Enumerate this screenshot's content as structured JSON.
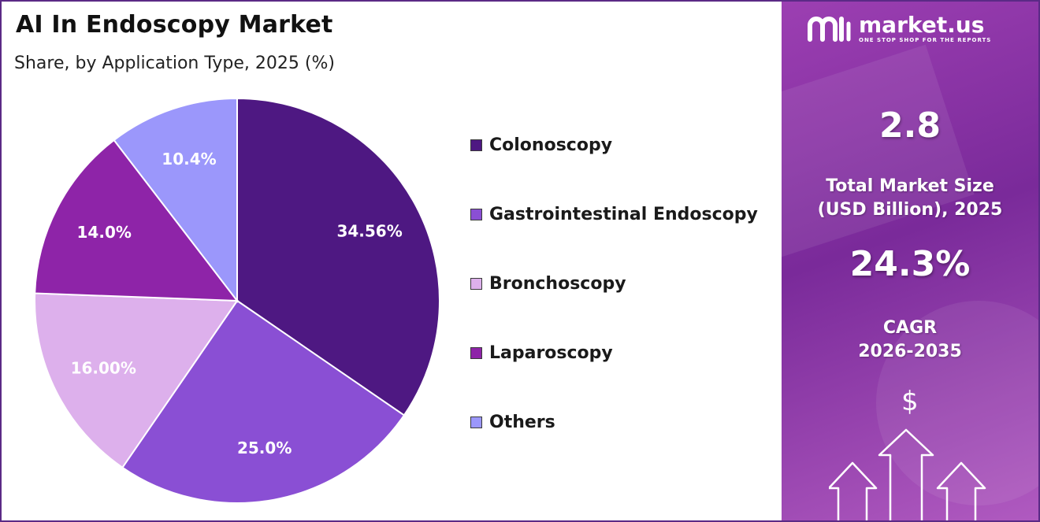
{
  "title": "AI In Endoscopy Market",
  "subtitle": "Share, by Application Type, 2025 (%)",
  "chart_data": {
    "type": "pie",
    "title": "AI In Endoscopy Market",
    "subtitle": "Share, by Application Type, 2025 (%)",
    "slices": [
      {
        "name": "Colonoscopy",
        "value": 34.56,
        "label": "34.56%",
        "color": "#4e1882"
      },
      {
        "name": "Gastrointestinal Endoscopy",
        "value": 25.0,
        "label": "25.0%",
        "color": "#8a4fd4"
      },
      {
        "name": "Bronchoscopy",
        "value": 16.0,
        "label": "16.00%",
        "color": "#ddb0ec"
      },
      {
        "name": "Laparoscopy",
        "value": 14.0,
        "label": "14.0%",
        "color": "#8e24a8"
      },
      {
        "name": "Others",
        "value": 10.4,
        "label": "10.4%",
        "color": "#9b97fb"
      }
    ],
    "legend_position": "right",
    "start": "top, clockwise"
  },
  "sidebar": {
    "brand": "market.us",
    "tagline": "ONE STOP SHOP FOR THE REPORTS",
    "market_size_value": "2.8",
    "market_size_label_1": "Total Market Size",
    "market_size_label_2": "(USD Billion), 2025",
    "cagr_value": "24.3%",
    "cagr_label_1": "CAGR",
    "cagr_label_2": "2026-2035",
    "currency_symbol": "$"
  }
}
